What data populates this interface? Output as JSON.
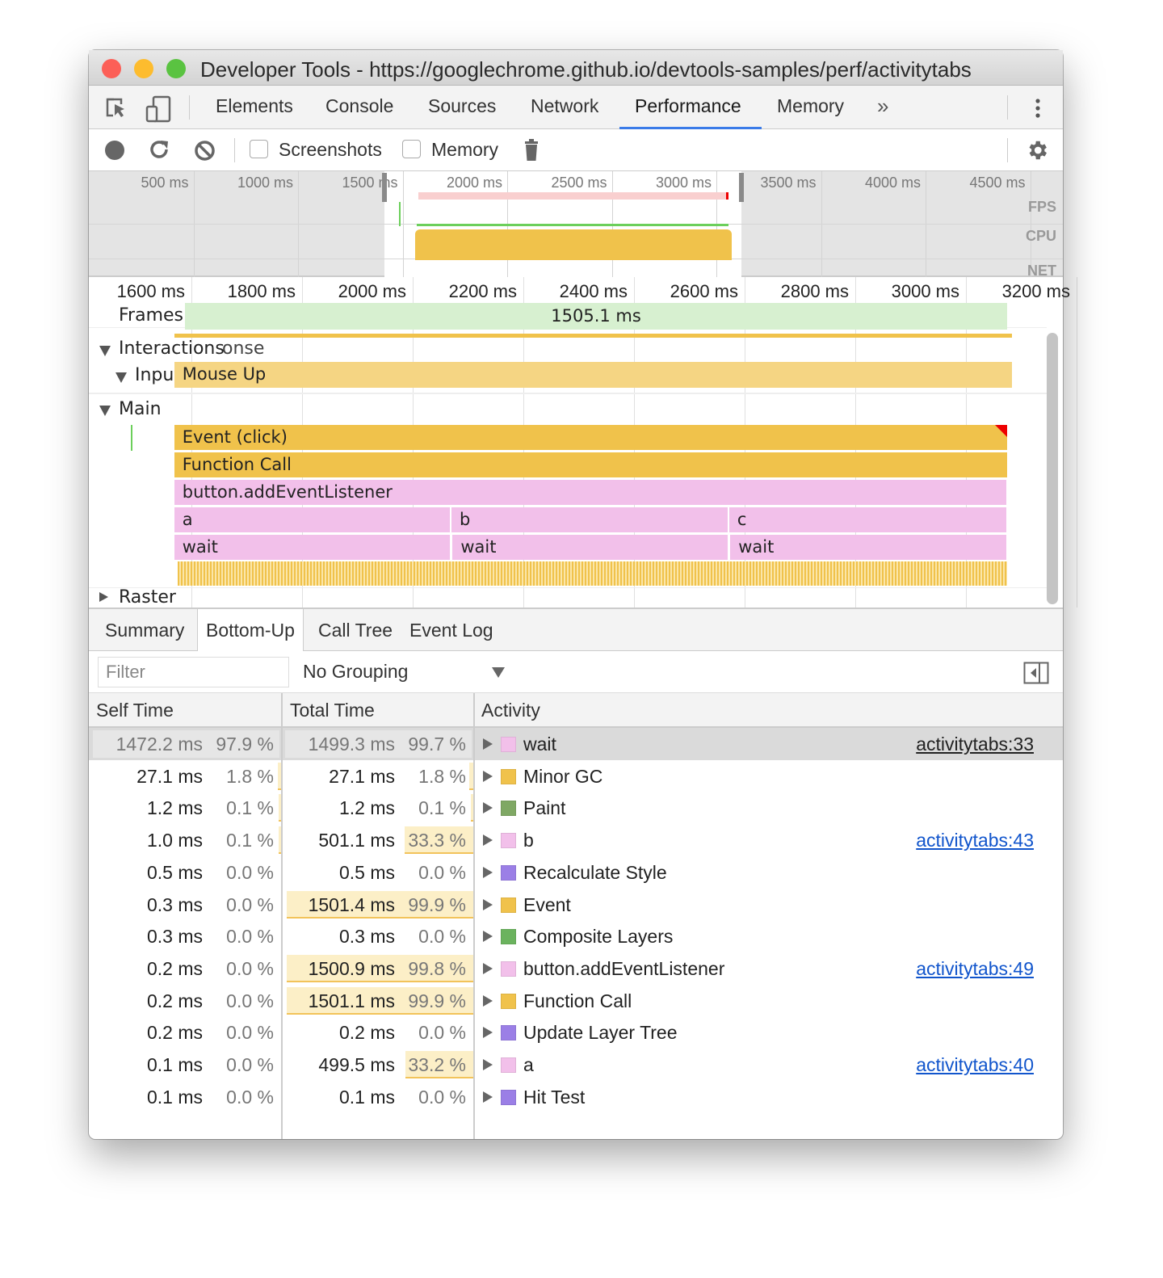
{
  "window": {
    "title": "Developer Tools - https://googlechrome.github.io/devtools-samples/perf/activitytabs"
  },
  "tabs": [
    {
      "label": "Elements"
    },
    {
      "label": "Console"
    },
    {
      "label": "Sources"
    },
    {
      "label": "Network"
    },
    {
      "label": "Performance",
      "active": true
    },
    {
      "label": "Memory"
    }
  ],
  "more_tabs_icon": "chevron-double-right-icon",
  "toolbar": {
    "screenshots_label": "Screenshots",
    "screenshots_checked": false,
    "memory_label": "Memory",
    "memory_checked": false
  },
  "overview": {
    "ticks": [
      "500 ms",
      "1000 ms",
      "1500 ms",
      "2000 ms",
      "2500 ms",
      "3000 ms",
      "3500 ms",
      "4000 ms",
      "4500 ms"
    ],
    "labels": {
      "fps": "FPS",
      "cpu": "CPU",
      "net": "NET"
    },
    "selection_ms": [
      1413,
      3120
    ]
  },
  "timeline": {
    "ticks": [
      "1600 ms",
      "1800 ms",
      "2000 ms",
      "2200 ms",
      "2400 ms",
      "2600 ms",
      "2800 ms",
      "3000 ms",
      "3200 ms"
    ],
    "tick_ms": [
      1600,
      1800,
      2000,
      2200,
      2400,
      2600,
      2800,
      3000,
      3200
    ],
    "tracks": {
      "frames": "Frames",
      "interactions": "Interactions",
      "interactions_overlap": "onse",
      "input": "Input",
      "main": "Main",
      "raster": "Raster"
    },
    "frame": {
      "label": "1505.1 ms",
      "start": 1589,
      "end": 3074
    },
    "input_event": {
      "label": "Mouse Up",
      "start": 1569,
      "end": 3078
    },
    "flame": [
      {
        "label": "Event (click)",
        "start": 1569,
        "end": 3074,
        "depth": 0,
        "color": "#f0c24b"
      },
      {
        "label": "Function Call",
        "start": 1569,
        "end": 3074,
        "depth": 1,
        "color": "#f0c24b"
      },
      {
        "label": "button.addEventListener",
        "start": 1569,
        "end": 3073,
        "depth": 2,
        "color": "#f2c0ea"
      },
      {
        "label": "a",
        "start": 1569,
        "end": 2067,
        "depth": 3,
        "color": "#f2c0ea"
      },
      {
        "label": "b",
        "start": 2070,
        "end": 2569,
        "depth": 3,
        "color": "#f2c0ea"
      },
      {
        "label": "c",
        "start": 2572,
        "end": 3073,
        "depth": 3,
        "color": "#f2c0ea"
      },
      {
        "label": "wait",
        "start": 1569,
        "end": 2067,
        "depth": 4,
        "color": "#f2c0ea"
      },
      {
        "label": "wait",
        "start": 2072,
        "end": 2569,
        "depth": 4,
        "color": "#f2c0ea"
      },
      {
        "label": "wait",
        "start": 2574,
        "end": 3073,
        "depth": 4,
        "color": "#f2c0ea"
      }
    ]
  },
  "bottom_tabs": [
    {
      "label": "Summary"
    },
    {
      "label": "Bottom-Up",
      "active": true
    },
    {
      "label": "Call Tree"
    },
    {
      "label": "Event Log"
    }
  ],
  "filter": {
    "placeholder": "Filter",
    "value": ""
  },
  "grouping": {
    "selected": "No Grouping"
  },
  "table": {
    "headers": {
      "self": "Self Time",
      "total": "Total Time",
      "activity": "Activity"
    },
    "rows": [
      {
        "self_ms": "1472.2 ms",
        "self_pct": "97.9 %",
        "total_ms": "1499.3 ms",
        "total_pct": "99.7 %",
        "self_frac": 97.9,
        "total_frac": 99.7,
        "name": "wait",
        "color": "#f2c0ea",
        "link": "activitytabs:33",
        "selected": true
      },
      {
        "self_ms": "27.1 ms",
        "self_pct": "1.8 %",
        "total_ms": "27.1 ms",
        "total_pct": "1.8 %",
        "self_frac": 1.8,
        "total_frac": 1.8,
        "name": "Minor GC",
        "color": "#f0c24b",
        "link": ""
      },
      {
        "self_ms": "1.2 ms",
        "self_pct": "0.1 %",
        "total_ms": "1.2 ms",
        "total_pct": "0.1 %",
        "self_frac": 0.1,
        "total_frac": 0.1,
        "name": "Paint",
        "color": "#7fa864",
        "link": ""
      },
      {
        "self_ms": "1.0 ms",
        "self_pct": "0.1 %",
        "total_ms": "501.1 ms",
        "total_pct": "33.3 %",
        "self_frac": 0.1,
        "total_frac": 33.3,
        "name": "b",
        "color": "#f2c0ea",
        "link": "activitytabs:43"
      },
      {
        "self_ms": "0.5 ms",
        "self_pct": "0.0 %",
        "total_ms": "0.5 ms",
        "total_pct": "0.0 %",
        "self_frac": 0,
        "total_frac": 0,
        "name": "Recalculate Style",
        "color": "#9b7fe6",
        "link": ""
      },
      {
        "self_ms": "0.3 ms",
        "self_pct": "0.0 %",
        "total_ms": "1501.4 ms",
        "total_pct": "99.9 %",
        "self_frac": 0,
        "total_frac": 99.9,
        "name": "Event",
        "color": "#f0c24b",
        "link": ""
      },
      {
        "self_ms": "0.3 ms",
        "self_pct": "0.0 %",
        "total_ms": "0.3 ms",
        "total_pct": "0.0 %",
        "self_frac": 0,
        "total_frac": 0,
        "name": "Composite Layers",
        "color": "#6bb35e",
        "link": ""
      },
      {
        "self_ms": "0.2 ms",
        "self_pct": "0.0 %",
        "total_ms": "1500.9 ms",
        "total_pct": "99.8 %",
        "self_frac": 0,
        "total_frac": 99.8,
        "name": "button.addEventListener",
        "color": "#f2c0ea",
        "link": "activitytabs:49"
      },
      {
        "self_ms": "0.2 ms",
        "self_pct": "0.0 %",
        "total_ms": "1501.1 ms",
        "total_pct": "99.9 %",
        "self_frac": 0,
        "total_frac": 99.9,
        "name": "Function Call",
        "color": "#f0c24b",
        "link": ""
      },
      {
        "self_ms": "0.2 ms",
        "self_pct": "0.0 %",
        "total_ms": "0.2 ms",
        "total_pct": "0.0 %",
        "self_frac": 0,
        "total_frac": 0,
        "name": "Update Layer Tree",
        "color": "#9b7fe6",
        "link": ""
      },
      {
        "self_ms": "0.1 ms",
        "self_pct": "0.0 %",
        "total_ms": "499.5 ms",
        "total_pct": "33.2 %",
        "self_frac": 0,
        "total_frac": 33.2,
        "name": "a",
        "color": "#f2c0ea",
        "link": "activitytabs:40"
      },
      {
        "self_ms": "0.1 ms",
        "self_pct": "0.0 %",
        "total_ms": "0.1 ms",
        "total_pct": "0.0 %",
        "self_frac": 0,
        "total_frac": 0,
        "name": "Hit Test",
        "color": "#9b7fe6",
        "link": ""
      }
    ]
  },
  "colors": {
    "accent": "#3b7be8",
    "event_yellow": "#f0c24b",
    "scripting_pink": "#f2c0ea",
    "frame_green": "#d7f0d0",
    "link": "#1155cc"
  }
}
